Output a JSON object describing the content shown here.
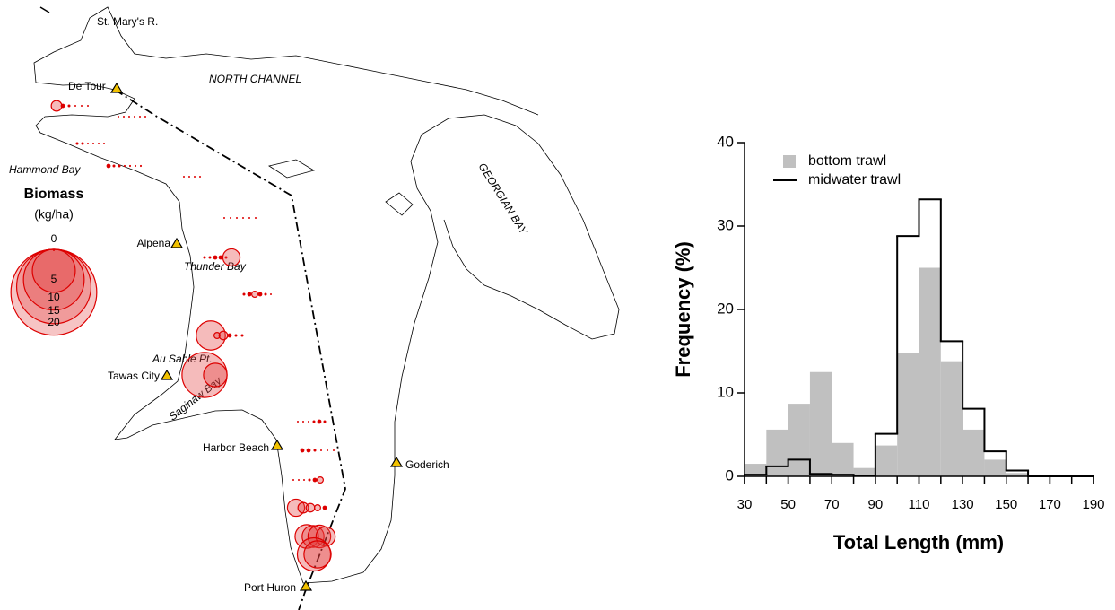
{
  "map": {
    "places": [
      "St. Mary's R.",
      "De Tour",
      "Alpena",
      "Tawas City",
      "Harbor Beach",
      "Goderich",
      "Port Huron"
    ],
    "areas": [
      "NORTH CHANNEL",
      "Hammond Bay",
      "Thunder Bay",
      "Au Sable Pt.",
      "Saginaw Bay",
      "GEORGIAN BAY"
    ],
    "legend": {
      "title": "Biomass",
      "unit": "(kg/ha)",
      "sizes": [
        0,
        5,
        10,
        15,
        20
      ]
    },
    "transects": [
      [
        0.3,
        0.05,
        0.02,
        0,
        0,
        0
      ],
      [
        0,
        0,
        0,
        0,
        0,
        0
      ],
      [
        0.02,
        0.02,
        0,
        0,
        0,
        0
      ],
      [
        0.05,
        0.02,
        0.02,
        0.01,
        0.01,
        0.01,
        0.01
      ],
      [
        0,
        0,
        0,
        0
      ],
      [
        0,
        0,
        0,
        0,
        0,
        0
      ],
      [
        0.02,
        0.02,
        0.05,
        0.05,
        0.02,
        0.8
      ],
      [
        0.02,
        0.05,
        0.1,
        0.05,
        0.02,
        0
      ],
      [
        2.3,
        0.1,
        0.2,
        0.05,
        0.02,
        0.02
      ],
      [
        5.5,
        1.5
      ],
      [
        0,
        0,
        0,
        0.02,
        0.05,
        0.02
      ],
      [
        0.05,
        0.05,
        0.02,
        0,
        0,
        0
      ],
      [
        0,
        0,
        0,
        0.02,
        0.05,
        0.1
      ],
      [
        0.8,
        0.3,
        0.2,
        0.1,
        0.05
      ],
      [
        1.5,
        1.3,
        1.4,
        1.0
      ],
      [
        3.0,
        2.0
      ]
    ]
  },
  "chart_data": {
    "type": "histogram",
    "xlabel": "Total Length (mm)",
    "ylabel": "Frequency (%)",
    "bins": [
      30,
      40,
      50,
      60,
      70,
      80,
      90,
      100,
      110,
      120,
      130,
      140,
      150,
      160,
      170,
      180,
      190
    ],
    "series": [
      {
        "name": "bottom trawl",
        "color": "#c0c0c0",
        "style": "bar",
        "values": [
          1.5,
          5.6,
          8.7,
          12.5,
          4.0,
          1.0,
          3.7,
          14.8,
          25.0,
          13.8,
          5.6,
          2.0,
          0.4,
          0.2,
          0,
          0
        ]
      },
      {
        "name": "midwater trawl",
        "color": "#000000",
        "style": "step",
        "values": [
          0.2,
          1.2,
          2.0,
          0.3,
          0.2,
          0.1,
          5.1,
          28.8,
          33.2,
          16.2,
          8.1,
          3.0,
          0.7,
          0,
          0,
          0
        ]
      }
    ],
    "xlim": [
      30,
      190
    ],
    "xticks": [
      30,
      50,
      70,
      90,
      110,
      130,
      150,
      170,
      190
    ],
    "ylim": [
      0,
      40
    ],
    "yticks": [
      0,
      10,
      20,
      30,
      40
    ]
  }
}
